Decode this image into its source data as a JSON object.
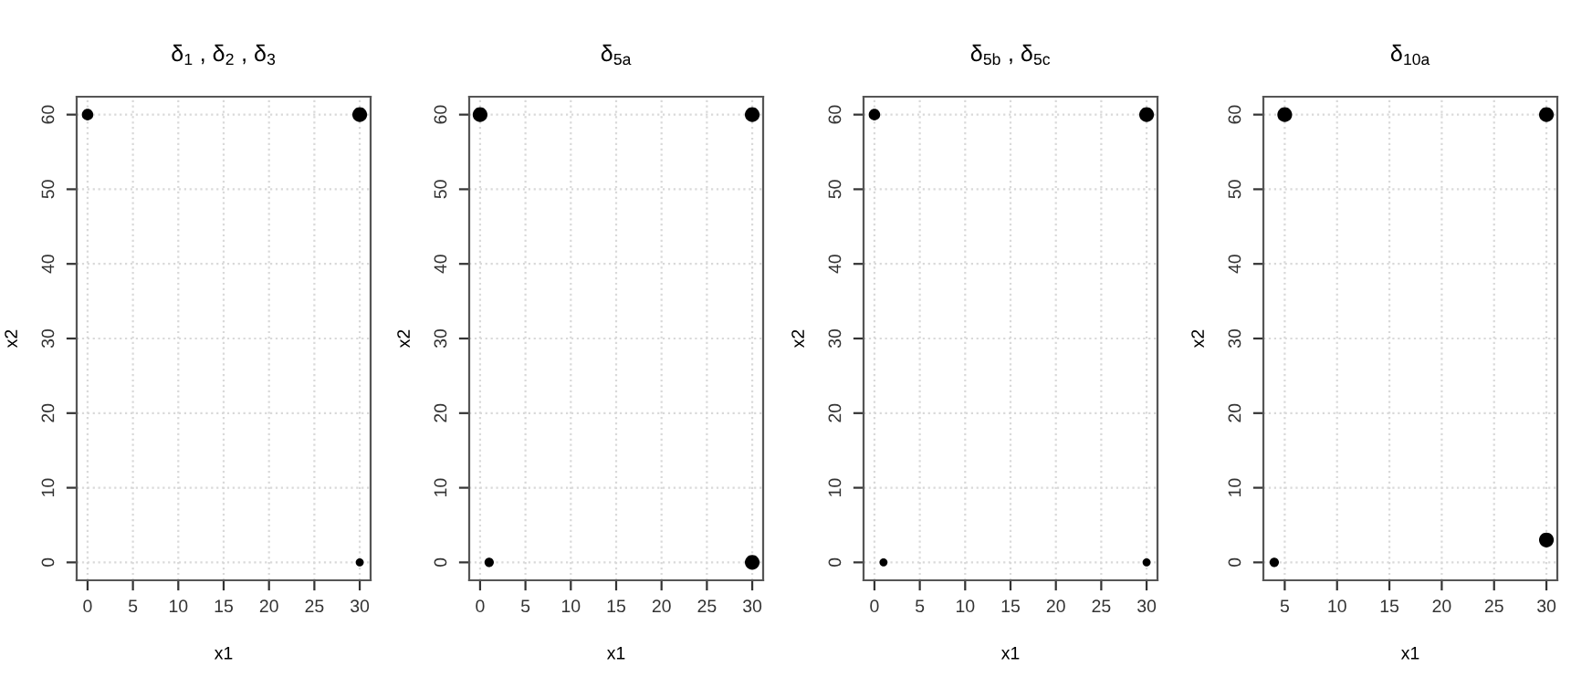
{
  "chart_data": [
    {
      "type": "bubble",
      "title": "δ$_{1}$ , δ$_{2}$ , δ$_{3}$",
      "xlabel": "x1",
      "ylabel": "x2",
      "marker": "circle",
      "grid": true,
      "xlim": [
        -1.2,
        31.2
      ],
      "ylim": [
        -2.4,
        62.4
      ],
      "xticks": [
        0,
        5,
        10,
        15,
        20,
        25,
        30
      ],
      "yticks": [
        0,
        10,
        20,
        30,
        40,
        50,
        60
      ],
      "series": [
        {
          "color": "#000000",
          "x": [
            0,
            30,
            30
          ],
          "values": [
            60,
            60,
            0
          ],
          "sizes": [
            0.6,
            1,
            0.3
          ]
        }
      ]
    },
    {
      "type": "bubble",
      "title": "δ$_{5a}$",
      "xlabel": "x1",
      "ylabel": "x2",
      "marker": "circle",
      "grid": true,
      "xlim": [
        -1.2,
        31.2
      ],
      "ylim": [
        -2.4,
        62.4
      ],
      "xticks": [
        0,
        5,
        10,
        15,
        20,
        25,
        30
      ],
      "yticks": [
        0,
        10,
        20,
        30,
        40,
        50,
        60
      ],
      "series": [
        {
          "color": "#000000",
          "x": [
            0,
            30,
            1,
            30
          ],
          "values": [
            60,
            60,
            0,
            0
          ],
          "sizes": [
            1,
            1,
            0.4,
            1
          ]
        }
      ]
    },
    {
      "type": "bubble",
      "title": "δ$_{5b}$ , δ$_{5c}$",
      "xlabel": "x1",
      "ylabel": "x2",
      "marker": "circle",
      "grid": true,
      "xlim": [
        -1.2,
        31.2
      ],
      "ylim": [
        -2.4,
        62.4
      ],
      "xticks": [
        0,
        5,
        10,
        15,
        20,
        25,
        30
      ],
      "yticks": [
        0,
        10,
        20,
        30,
        40,
        50,
        60
      ],
      "series": [
        {
          "color": "#000000",
          "x": [
            0,
            30,
            1,
            30
          ],
          "values": [
            60,
            60,
            0,
            0
          ],
          "sizes": [
            0.6,
            1,
            0.3,
            0.3
          ]
        }
      ]
    },
    {
      "type": "bubble",
      "title": "δ$_{10a}$",
      "xlabel": "x1",
      "ylabel": "x2",
      "marker": "circle",
      "grid": true,
      "xlim": [
        2.96,
        31.04
      ],
      "ylim": [
        -2.4,
        62.4
      ],
      "xticks": [
        5,
        10,
        15,
        20,
        25,
        30
      ],
      "yticks": [
        0,
        10,
        20,
        30,
        40,
        50,
        60
      ],
      "series": [
        {
          "color": "#000000",
          "x": [
            5,
            30,
            4,
            30
          ],
          "values": [
            60,
            60,
            0,
            3
          ],
          "sizes": [
            1,
            1,
            0.4,
            1
          ]
        }
      ]
    }
  ]
}
